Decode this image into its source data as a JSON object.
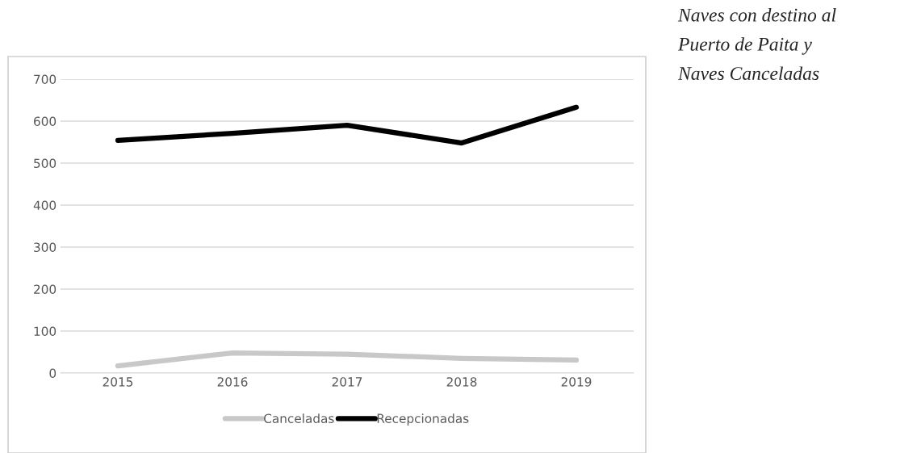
{
  "chart_data": {
    "type": "line",
    "title": "Naves con destino al\nPuerto de Paita y\nNaves Canceladas",
    "categories": [
      "2015",
      "2016",
      "2017",
      "2018",
      "2019"
    ],
    "series": [
      {
        "name": "Canceladas",
        "color": "#c8c8c8",
        "values": [
          17,
          48,
          45,
          35,
          31
        ]
      },
      {
        "name": "Recepcionadas",
        "color": "#000000",
        "values": [
          554,
          571,
          590,
          548,
          633
        ]
      }
    ],
    "ylim": [
      0,
      700
    ],
    "yticks": [
      0,
      100,
      200,
      300,
      400,
      500,
      600,
      700
    ],
    "grid": "y",
    "legend": "bottom",
    "marker": "none",
    "line_style": "solid"
  }
}
